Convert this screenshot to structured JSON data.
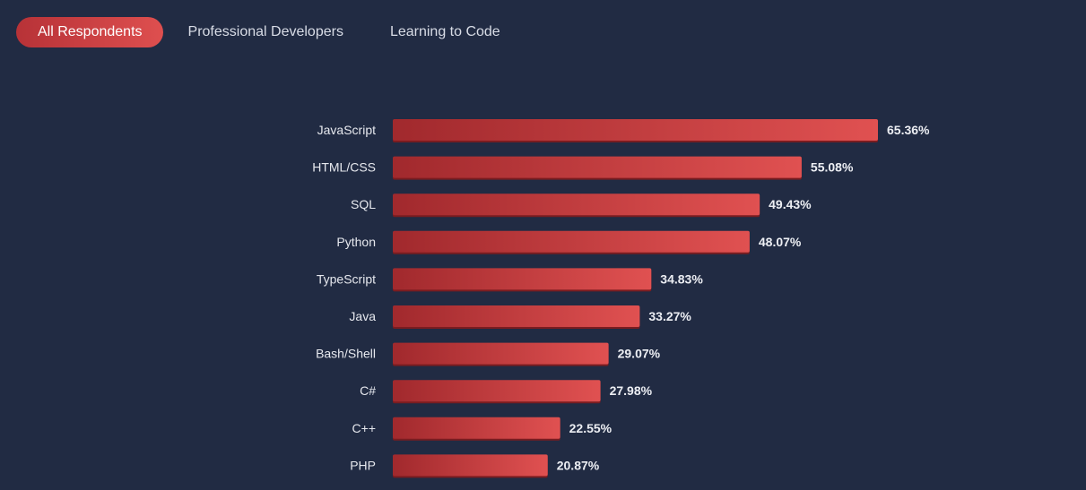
{
  "tabs": {
    "items": [
      {
        "label": "All Respondents",
        "active": true
      },
      {
        "label": "Professional Developers",
        "active": false
      },
      {
        "label": "Learning to Code",
        "active": false
      }
    ]
  },
  "colors": {
    "background": "#212b43",
    "bar_start": "#a1292d",
    "bar_end": "#e05151",
    "bar_shadow": "#7a1c20",
    "tab_active_start": "#b73237",
    "tab_active_end": "#de4f4f",
    "text": "#e6e8ee"
  },
  "chart_data": {
    "type": "bar",
    "orientation": "horizontal",
    "categories": [
      "JavaScript",
      "HTML/CSS",
      "SQL",
      "Python",
      "TypeScript",
      "Java",
      "Bash/Shell",
      "C#",
      "C++",
      "PHP"
    ],
    "values": [
      65.36,
      55.08,
      49.43,
      48.07,
      34.83,
      33.27,
      29.07,
      27.98,
      22.55,
      20.87
    ],
    "value_labels": [
      "65.36%",
      "55.08%",
      "49.43%",
      "48.07%",
      "34.83%",
      "33.27%",
      "29.07%",
      "27.98%",
      "22.55%",
      "20.87%"
    ],
    "title": "",
    "xlabel": "",
    "ylabel": "",
    "xlim": [
      0,
      65.36
    ],
    "grid": false,
    "legend": "none"
  }
}
